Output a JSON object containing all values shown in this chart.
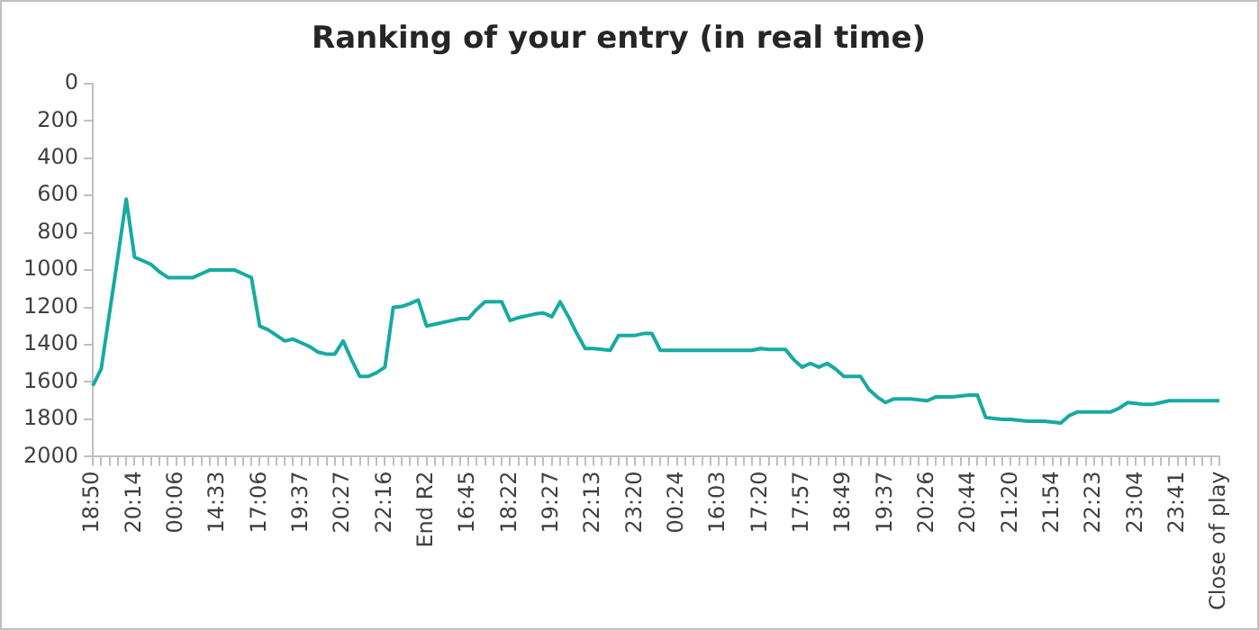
{
  "chart_data": {
    "type": "line",
    "title": "Ranking of your entry (in real time)",
    "categories": [
      "18:50",
      null,
      null,
      null,
      null,
      "20:14",
      null,
      null,
      null,
      null,
      "00:06",
      null,
      null,
      null,
      null,
      "14:33",
      null,
      null,
      null,
      null,
      "17:06",
      null,
      null,
      null,
      null,
      "19:37",
      null,
      null,
      null,
      null,
      "20:27",
      null,
      null,
      null,
      null,
      "22:16",
      null,
      null,
      null,
      null,
      "End R2",
      null,
      null,
      null,
      null,
      "16:45",
      null,
      null,
      null,
      null,
      "18:22",
      null,
      null,
      null,
      null,
      "19:27",
      null,
      null,
      null,
      null,
      "22:13",
      null,
      null,
      null,
      null,
      "23:20",
      null,
      null,
      null,
      null,
      "00:24",
      null,
      null,
      null,
      null,
      "16:03",
      null,
      null,
      null,
      null,
      "17:20",
      null,
      null,
      null,
      null,
      "17:57",
      null,
      null,
      null,
      null,
      "18:49",
      null,
      null,
      null,
      null,
      "19:37",
      null,
      null,
      null,
      null,
      "20:26",
      null,
      null,
      null,
      null,
      "20:44",
      null,
      null,
      null,
      null,
      "21:20",
      null,
      null,
      null,
      null,
      "21:54",
      null,
      null,
      null,
      null,
      "22:23",
      null,
      null,
      null,
      null,
      "23:04",
      null,
      null,
      null,
      null,
      "23:41",
      null,
      null,
      null,
      null,
      "Close of play"
    ],
    "series": [
      {
        "color": "#17aaa3",
        "values": [
          1620,
          1530,
          1230,
          930,
          620,
          930,
          950,
          970,
          1010,
          1040,
          1040,
          1040,
          1040,
          1020,
          1000,
          1000,
          1000,
          1000,
          1020,
          1040,
          1300,
          1320,
          1350,
          1380,
          1370,
          1390,
          1410,
          1440,
          1450,
          1450,
          1380,
          1480,
          1570,
          1570,
          1550,
          1520,
          1200,
          1195,
          1180,
          1160,
          1300,
          1290,
          1280,
          1270,
          1260,
          1260,
          1210,
          1170,
          1170,
          1170,
          1270,
          1255,
          1245,
          1235,
          1230,
          1250,
          1170,
          1250,
          1340,
          1420,
          1420,
          1425,
          1430,
          1350,
          1350,
          1350,
          1340,
          1340,
          1430,
          1430,
          1430,
          1430,
          1430,
          1430,
          1430,
          1430,
          1430,
          1430,
          1430,
          1430,
          1420,
          1425,
          1425,
          1425,
          1480,
          1520,
          1500,
          1520,
          1500,
          1530,
          1570,
          1570,
          1570,
          1640,
          1680,
          1710,
          1690,
          1690,
          1690,
          1695,
          1700,
          1680,
          1680,
          1680,
          1675,
          1670,
          1670,
          1790,
          1795,
          1800,
          1800,
          1805,
          1810,
          1810,
          1810,
          1815,
          1820,
          1780,
          1760,
          1760,
          1760,
          1760,
          1760,
          1740,
          1710,
          1715,
          1720,
          1720,
          1710,
          1700,
          1700,
          1700,
          1700,
          1700,
          1700,
          1700
        ]
      }
    ],
    "ylim": [
      2000,
      0
    ],
    "yticks": [
      0,
      200,
      400,
      600,
      800,
      1000,
      1200,
      1400,
      1600,
      1800,
      2000
    ],
    "grid": false,
    "legend": false,
    "marker": "none",
    "line_style": "solid"
  }
}
